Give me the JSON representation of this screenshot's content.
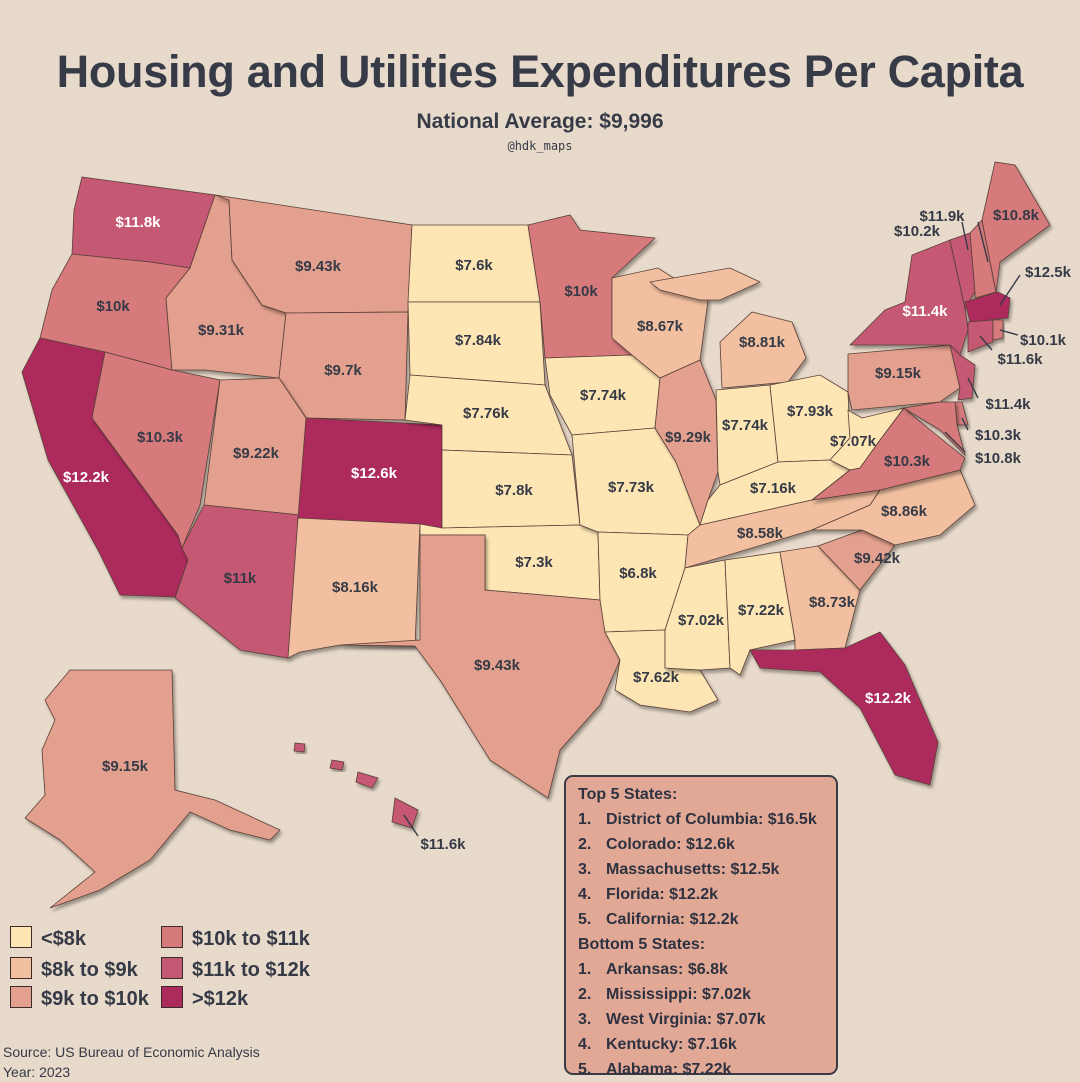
{
  "title": "Housing and Utilities Expenditures Per Capita",
  "subtitle": "National Average: $9,996",
  "handle": "@hdk_maps",
  "colors": {
    "background": "#e8dacb",
    "bin_lt_8k": "#fde5b4",
    "bin_8k_9k": "#f2c0a0",
    "bin_9k_10k": "#e3a08e",
    "bin_10k_11k": "#d67a7c",
    "bin_11k_12k": "#c55873",
    "bin_gt_12k": "#ad2a5d"
  },
  "legend": [
    {
      "label": "<$8k",
      "color": "#fde5b4"
    },
    {
      "label": "$8k to $9k",
      "color": "#f2c0a0"
    },
    {
      "label": "$9k to $10k",
      "color": "#e3a08e"
    },
    {
      "label": "$10k to $11k",
      "color": "#d67a7c"
    },
    {
      "label": "$11k to $12k",
      "color": "#c55873"
    },
    {
      "label": ">$12k",
      "color": "#ad2a5d"
    }
  ],
  "states": {
    "WA": "$11.8k",
    "OR": "$10k",
    "CA": "$12.2k",
    "ID": "$9.31k",
    "NV": "$10.3k",
    "MT": "$9.43k",
    "WY": "$9.7k",
    "UT": "$9.22k",
    "AZ": "$11k",
    "CO": "$12.6k",
    "NM": "$8.16k",
    "ND": "$7.6k",
    "SD": "$7.84k",
    "NE": "$7.76k",
    "KS": "$7.8k",
    "OK": "$7.3k",
    "TX": "$9.43k",
    "MN": "$10k",
    "IA": "$7.74k",
    "MO": "$7.73k",
    "AR": "$6.8k",
    "LA": "$7.62k",
    "WI": "$8.67k",
    "IL": "$9.29k",
    "MI": "$8.81k",
    "IN": "$7.74k",
    "OH": "$7.93k",
    "KY": "$7.16k",
    "TN": "$8.58k",
    "MS": "$7.02k",
    "AL": "$7.22k",
    "GA": "$8.73k",
    "FL": "$12.2k",
    "SC": "$9.42k",
    "NC": "$8.86k",
    "VA": "$10.3k",
    "WV": "$7.07k",
    "PA": "$9.15k",
    "NY": "$11.4k",
    "ME": "$10.8k",
    "VT": "$11.9k",
    "NH": "$10.2k",
    "MA": "$12.5k",
    "RI": "$10.1k",
    "CT": "$11.6k",
    "NJ": "$11.4k",
    "DE": "$10.3k",
    "MD": "$10.8k",
    "AK": "$9.15k",
    "HI": "$11.6k"
  },
  "rankings": {
    "top_title": "Top 5 States:",
    "top": [
      {
        "rank": "1.",
        "text": "District of Columbia: $16.5k"
      },
      {
        "rank": "2.",
        "text": "Colorado: $12.6k"
      },
      {
        "rank": "3.",
        "text": "Massachusetts: $12.5k"
      },
      {
        "rank": "4.",
        "text": "Florida: $12.2k"
      },
      {
        "rank": "5.",
        "text": "California: $12.2k"
      }
    ],
    "bottom_title": "Bottom 5 States:",
    "bottom": [
      {
        "rank": "1.",
        "text": "Arkansas: $6.8k"
      },
      {
        "rank": "2.",
        "text": "Mississippi: $7.02k"
      },
      {
        "rank": "3.",
        "text": "West Virginia: $7.07k"
      },
      {
        "rank": "4.",
        "text": "Kentucky: $7.16k"
      },
      {
        "rank": "5.",
        "text": "Alabama: $7.22k"
      }
    ]
  },
  "source": "Source: US Bureau of Economic Analysis",
  "year": "Year: 2023"
}
